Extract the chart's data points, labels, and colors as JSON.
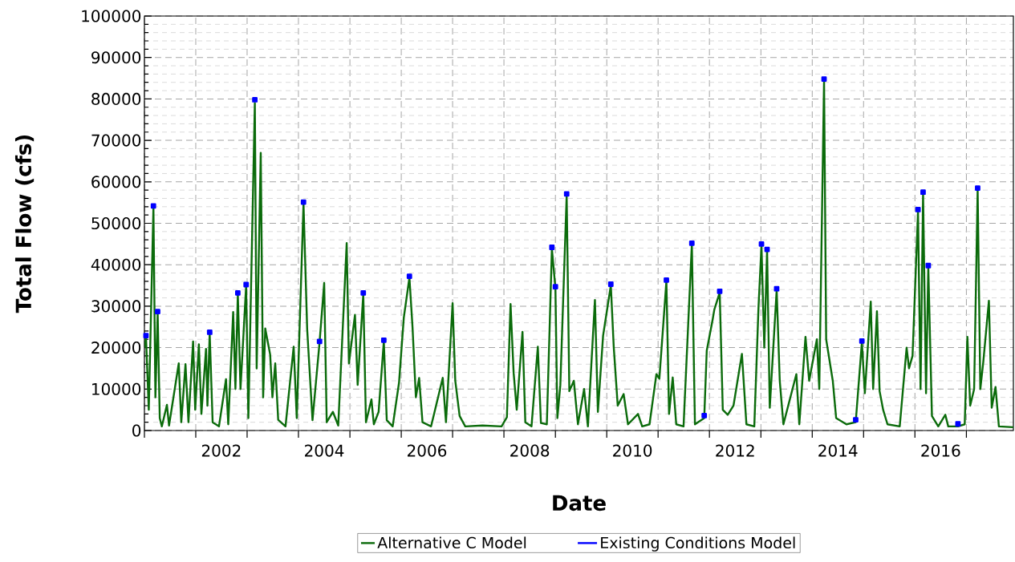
{
  "chart_data": {
    "type": "line",
    "xlabel": "Date",
    "ylabel": "Total Flow  (cfs)",
    "xlim": [
      "2001-01-01",
      "2017-12-01"
    ],
    "ylim": [
      0,
      100000
    ],
    "xticks": [
      {
        "value": "2001-01-01",
        "label": null
      },
      {
        "value": "2002-01-01",
        "label": null
      },
      {
        "value": "2002-07-02",
        "label": "2002"
      },
      {
        "value": "2003-01-01",
        "label": null
      },
      {
        "value": "2004-01-01",
        "label": null
      },
      {
        "value": "2004-07-02",
        "label": "2004"
      },
      {
        "value": "2005-01-01",
        "label": null
      },
      {
        "value": "2006-01-01",
        "label": null
      },
      {
        "value": "2006-07-02",
        "label": "2006"
      },
      {
        "value": "2007-01-01",
        "label": null
      },
      {
        "value": "2008-01-01",
        "label": null
      },
      {
        "value": "2008-07-02",
        "label": "2008"
      },
      {
        "value": "2009-01-01",
        "label": null
      },
      {
        "value": "2010-01-01",
        "label": null
      },
      {
        "value": "2010-07-02",
        "label": "2010"
      },
      {
        "value": "2011-01-01",
        "label": null
      },
      {
        "value": "2012-01-01",
        "label": null
      },
      {
        "value": "2012-07-02",
        "label": "2012"
      },
      {
        "value": "2013-01-01",
        "label": null
      },
      {
        "value": "2014-01-01",
        "label": null
      },
      {
        "value": "2014-07-02",
        "label": "2014"
      },
      {
        "value": "2015-01-01",
        "label": null
      },
      {
        "value": "2016-01-01",
        "label": null
      },
      {
        "value": "2016-07-02",
        "label": "2016"
      },
      {
        "value": "2017-01-01",
        "label": null
      }
    ],
    "yticks": [
      0,
      10000,
      20000,
      30000,
      40000,
      50000,
      60000,
      70000,
      80000,
      90000,
      100000
    ],
    "grid": true,
    "legend": "bottom",
    "x": [
      "2001-01-01",
      "2001-01-12",
      "2001-02-01",
      "2001-03-06",
      "2001-03-20",
      "2001-04-05",
      "2001-04-20",
      "2001-05-05",
      "2001-06-10",
      "2001-06-25",
      "2001-09-02",
      "2001-09-20",
      "2001-10-20",
      "2001-11-10",
      "2001-12-13",
      "2001-12-28",
      "2002-01-23",
      "2002-02-10",
      "2002-03-15",
      "2002-03-25",
      "2002-04-10",
      "2002-05-01",
      "2002-06-15",
      "2002-08-04",
      "2002-08-20",
      "2002-09-24",
      "2002-10-10",
      "2002-10-27",
      "2002-11-15",
      "2002-12-25",
      "2003-01-10",
      "2003-02-25",
      "2003-03-10",
      "2003-04-08",
      "2003-04-25",
      "2003-05-10",
      "2003-06-14",
      "2003-06-30",
      "2003-07-20",
      "2003-08-10",
      "2003-10-01",
      "2003-11-28",
      "2003-12-20",
      "2004-02-06",
      "2004-03-03",
      "2004-04-10",
      "2004-05-30",
      "2004-07-02",
      "2004-07-20",
      "2004-09-02",
      "2004-10-10",
      "2004-12-09",
      "2004-12-25",
      "2005-02-06",
      "2005-02-25",
      "2005-04-06",
      "2005-04-25",
      "2005-06-03",
      "2005-06-20",
      "2005-07-24",
      "2005-08-30",
      "2005-09-20",
      "2005-11-01",
      "2005-12-16",
      "2006-01-19",
      "2006-02-28",
      "2006-03-22",
      "2006-04-15",
      "2006-05-08",
      "2006-06-01",
      "2006-08-01",
      "2006-10-23",
      "2006-11-15",
      "2007-01-01",
      "2007-01-20",
      "2007-02-20",
      "2007-04-01",
      "2007-08-01",
      "2007-12-15",
      "2008-01-22",
      "2008-02-17",
      "2008-03-10",
      "2008-04-01",
      "2008-05-12",
      "2008-06-01",
      "2008-07-15",
      "2008-08-29",
      "2008-09-20",
      "2008-11-01",
      "2008-12-07",
      "2009-01-01",
      "2009-01-15",
      "2009-02-05",
      "2009-03-22",
      "2009-04-10",
      "2009-05-12",
      "2009-06-10",
      "2009-07-24",
      "2009-08-20",
      "2009-10-09",
      "2009-10-30",
      "2009-12-06",
      "2010-01-30",
      "2010-02-20",
      "2010-03-20",
      "2010-05-01",
      "2010-06-01",
      "2010-08-11",
      "2010-09-10",
      "2010-11-01",
      "2010-12-20",
      "2011-01-10",
      "2011-03-01",
      "2011-03-20",
      "2011-04-15",
      "2011-05-10",
      "2011-07-01",
      "2011-08-29",
      "2011-09-20",
      "2011-11-25",
      "2011-12-13",
      "2012-01-23",
      "2012-02-05",
      "2012-03-14",
      "2012-04-05",
      "2012-05-10",
      "2012-06-20",
      "2012-08-19",
      "2012-09-20",
      "2012-11-15",
      "2012-12-15",
      "2013-01-05",
      "2013-01-25",
      "2013-02-14",
      "2013-03-05",
      "2013-04-23",
      "2013-05-15",
      "2013-06-10",
      "2013-09-10",
      "2013-10-01",
      "2013-11-14",
      "2013-12-10",
      "2014-02-03",
      "2014-02-20",
      "2014-03-26",
      "2014-04-10",
      "2014-05-27",
      "2014-06-20",
      "2014-09-01",
      "2014-11-06",
      "2014-12-20",
      "2015-01-10",
      "2015-02-21",
      "2015-03-10",
      "2015-04-06",
      "2015-04-25",
      "2015-05-20",
      "2015-06-20",
      "2015-09-15",
      "2015-11-03",
      "2015-11-20",
      "2015-12-15",
      "2016-01-23",
      "2016-02-10",
      "2016-02-28",
      "2016-03-20",
      "2016-04-05",
      "2016-05-01",
      "2016-06-15",
      "2016-08-04",
      "2016-08-25",
      "2016-11-02",
      "2016-12-20",
      "2017-01-08",
      "2017-01-28",
      "2017-02-25",
      "2017-03-22",
      "2017-04-10",
      "2017-05-01",
      "2017-06-10",
      "2017-06-30",
      "2017-07-27",
      "2017-08-20",
      "2017-11-30"
    ],
    "series": [
      {
        "name": "Alternative C Model",
        "color": "#0b6b0b",
        "values": [
          20000,
          22600,
          5000,
          53800,
          8000,
          28400,
          3000,
          1000,
          6200,
          1200,
          16200,
          2000,
          16000,
          2000,
          21500,
          5000,
          20800,
          4000,
          19700,
          6000,
          23400,
          2000,
          1000,
          12400,
          1500,
          28600,
          10000,
          32900,
          10000,
          34900,
          3000,
          79000,
          15000,
          67000,
          8000,
          24600,
          18300,
          8000,
          16200,
          2600,
          1000,
          20200,
          3000,
          54700,
          24500,
          2500,
          21200,
          35600,
          2000,
          4500,
          1200,
          45200,
          16200,
          27900,
          11000,
          32900,
          2000,
          7500,
          1500,
          4500,
          21500,
          2500,
          1000,
          11500,
          27200,
          36900,
          25000,
          8000,
          12700,
          2000,
          1000,
          12700,
          2000,
          30700,
          12000,
          3500,
          1000,
          1200,
          1000,
          3200,
          30500,
          13900,
          5000,
          23800,
          2000,
          1000,
          20200,
          1800,
          1500,
          43800,
          34400,
          3000,
          11000,
          56700,
          9500,
          12000,
          1500,
          10000,
          1000,
          31500,
          4500,
          22900,
          35000,
          20000,
          6000,
          8800,
          1500,
          4000,
          1000,
          1500,
          13600,
          12500,
          36000,
          4000,
          12800,
          1500,
          1000,
          44900,
          1500,
          3000,
          19300,
          26600,
          29200,
          33300,
          5000,
          3800,
          6000,
          18500,
          1500,
          1000,
          29800,
          44600,
          20000,
          43400,
          5500,
          33900,
          12000,
          1500,
          13600,
          1500,
          22600,
          12000,
          22000,
          10000,
          84400,
          22000,
          12000,
          3000,
          1500,
          2000,
          21300,
          9000,
          31100,
          10000,
          28800,
          9500,
          5000,
          1500,
          1000,
          20000,
          15000,
          18000,
          52900,
          10000,
          57100,
          9000,
          39500,
          3500,
          1000,
          3800,
          1000,
          1000,
          1500,
          22600,
          6000,
          10000,
          58000,
          10000,
          16500,
          31300,
          5500,
          10500,
          1000,
          800
        ]
      },
      {
        "name": "Existing Conditions Model",
        "type": "scatter",
        "marker": "square",
        "color": "#0000ff",
        "x": [
          "2001-01-12",
          "2001-03-06",
          "2001-04-05",
          "2002-04-10",
          "2002-10-27",
          "2002-12-25",
          "2003-02-25",
          "2004-02-06",
          "2004-05-30",
          "2005-04-06",
          "2005-08-30",
          "2006-02-28",
          "2008-12-07",
          "2009-01-01",
          "2009-03-22",
          "2010-01-30",
          "2011-03-01",
          "2011-08-29",
          "2011-11-25",
          "2012-03-14",
          "2013-01-05",
          "2013-02-14",
          "2013-04-23",
          "2014-03-26",
          "2014-11-06",
          "2014-12-20",
          "2016-01-23",
          "2016-02-28",
          "2016-04-05",
          "2016-11-02",
          "2017-03-22"
        ],
        "values": [
          22900,
          54200,
          28700,
          23700,
          33200,
          35200,
          79800,
          55100,
          21500,
          33200,
          21800,
          37200,
          44200,
          34700,
          57100,
          35300,
          36300,
          45200,
          3600,
          33600,
          45000,
          43700,
          34200,
          84800,
          2600,
          21600,
          53300,
          57500,
          39800,
          1600,
          58500
        ]
      }
    ]
  }
}
